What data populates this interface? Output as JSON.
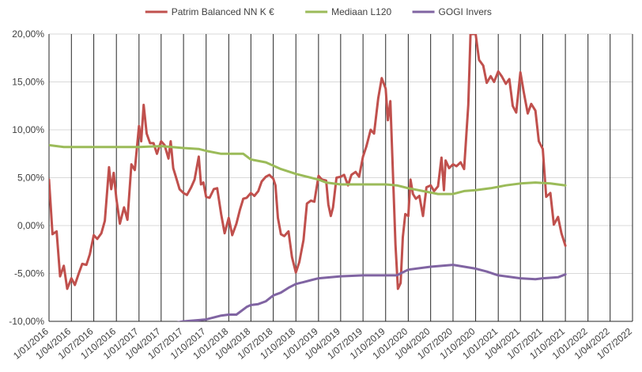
{
  "chart_data": {
    "type": "line",
    "y_ticks": [
      "20,00%",
      "15,00%",
      "10,00%",
      "5,00%",
      "0,00%",
      "-5,00%",
      "-10,00%"
    ],
    "y_tick_values": [
      20,
      15,
      10,
      5,
      0,
      -5,
      -10
    ],
    "ylim": [
      -10,
      20
    ],
    "x_ticks": [
      "1/01/2016",
      "1/04/2016",
      "1/07/2016",
      "1/10/2016",
      "1/01/2017",
      "1/04/2017",
      "1/07/2017",
      "1/10/2017",
      "1/01/2018",
      "1/04/2018",
      "1/07/2018",
      "1/10/2018",
      "1/01/2019",
      "1/04/2019",
      "1/07/2019",
      "1/10/2019",
      "1/01/2020",
      "1/04/2020",
      "1/07/2020",
      "1/10/2020",
      "1/01/2021",
      "1/04/2021",
      "1/07/2021",
      "1/10/2021",
      "1/01/2022",
      "1/04/2022",
      "1/07/2022"
    ],
    "xlim": [
      "2016-01-01",
      "2022-07-01"
    ],
    "grid": "vertical and horizontal",
    "legend_position": "top",
    "series": [
      {
        "name": "Patrim Balanced NN K €",
        "color": "#c0504d",
        "points": [
          [
            "2016-01-01",
            4.8
          ],
          [
            "2016-01-15",
            -0.9
          ],
          [
            "2016-02-01",
            -0.6
          ],
          [
            "2016-02-15",
            -5.3
          ],
          [
            "2016-03-01",
            -4.2
          ],
          [
            "2016-03-15",
            -6.6
          ],
          [
            "2016-04-01",
            -5.5
          ],
          [
            "2016-04-15",
            -6.2
          ],
          [
            "2016-05-01",
            -5.0
          ],
          [
            "2016-05-15",
            -4.0
          ],
          [
            "2016-06-01",
            -4.1
          ],
          [
            "2016-06-15",
            -3.0
          ],
          [
            "2016-07-01",
            -1.0
          ],
          [
            "2016-07-15",
            -1.4
          ],
          [
            "2016-08-01",
            -0.8
          ],
          [
            "2016-08-15",
            0.5
          ],
          [
            "2016-09-01",
            6.1
          ],
          [
            "2016-09-10",
            3.8
          ],
          [
            "2016-09-20",
            5.5
          ],
          [
            "2016-10-01",
            2.8
          ],
          [
            "2016-10-15",
            0.2
          ],
          [
            "2016-11-01",
            1.9
          ],
          [
            "2016-11-15",
            0.6
          ],
          [
            "2016-12-01",
            6.4
          ],
          [
            "2016-12-15",
            5.8
          ],
          [
            "2017-01-01",
            10.4
          ],
          [
            "2017-01-10",
            8.8
          ],
          [
            "2017-01-20",
            12.6
          ],
          [
            "2017-02-01",
            9.6
          ],
          [
            "2017-02-15",
            8.6
          ],
          [
            "2017-03-01",
            8.6
          ],
          [
            "2017-03-15",
            7.5
          ],
          [
            "2017-04-01",
            8.8
          ],
          [
            "2017-04-15",
            8.4
          ],
          [
            "2017-05-01",
            7.0
          ],
          [
            "2017-05-10",
            8.8
          ],
          [
            "2017-05-20",
            6.0
          ],
          [
            "2017-06-01",
            5.0
          ],
          [
            "2017-06-15",
            3.8
          ],
          [
            "2017-07-01",
            3.4
          ],
          [
            "2017-07-15",
            3.2
          ],
          [
            "2017-08-01",
            4.0
          ],
          [
            "2017-08-15",
            4.8
          ],
          [
            "2017-09-01",
            7.2
          ],
          [
            "2017-09-10",
            4.3
          ],
          [
            "2017-09-20",
            4.5
          ],
          [
            "2017-10-01",
            3.0
          ],
          [
            "2017-10-15",
            2.9
          ],
          [
            "2017-11-01",
            3.8
          ],
          [
            "2017-11-15",
            3.9
          ],
          [
            "2017-12-01",
            1.2
          ],
          [
            "2017-12-15",
            -0.8
          ],
          [
            "2018-01-01",
            0.8
          ],
          [
            "2018-01-15",
            -1.0
          ],
          [
            "2018-02-01",
            0.2
          ],
          [
            "2018-02-15",
            1.6
          ],
          [
            "2018-03-01",
            2.8
          ],
          [
            "2018-03-15",
            2.9
          ],
          [
            "2018-04-01",
            3.4
          ],
          [
            "2018-04-15",
            3.1
          ],
          [
            "2018-05-01",
            3.6
          ],
          [
            "2018-05-15",
            4.6
          ],
          [
            "2018-06-01",
            5.1
          ],
          [
            "2018-06-15",
            5.3
          ],
          [
            "2018-07-01",
            4.9
          ],
          [
            "2018-07-10",
            4.2
          ],
          [
            "2018-07-20",
            0.8
          ],
          [
            "2018-08-01",
            -0.9
          ],
          [
            "2018-08-15",
            -1.1
          ],
          [
            "2018-09-01",
            -0.6
          ],
          [
            "2018-09-15",
            -3.3
          ],
          [
            "2018-10-01",
            -4.9
          ],
          [
            "2018-10-15",
            -3.8
          ],
          [
            "2018-11-01",
            -1.5
          ],
          [
            "2018-11-15",
            2.3
          ],
          [
            "2018-12-01",
            2.6
          ],
          [
            "2018-12-15",
            2.5
          ],
          [
            "2019-01-01",
            5.2
          ],
          [
            "2019-01-15",
            4.8
          ],
          [
            "2019-02-01",
            4.7
          ],
          [
            "2019-02-10",
            2.2
          ],
          [
            "2019-02-20",
            1.0
          ],
          [
            "2019-03-01",
            1.9
          ],
          [
            "2019-03-15",
            5.0
          ],
          [
            "2019-04-01",
            5.1
          ],
          [
            "2019-04-15",
            5.3
          ],
          [
            "2019-05-01",
            4.2
          ],
          [
            "2019-05-15",
            5.3
          ],
          [
            "2019-06-01",
            5.6
          ],
          [
            "2019-06-15",
            5.1
          ],
          [
            "2019-07-01",
            7.2
          ],
          [
            "2019-07-15",
            8.3
          ],
          [
            "2019-08-01",
            10.0
          ],
          [
            "2019-08-15",
            9.6
          ],
          [
            "2019-09-01",
            13.3
          ],
          [
            "2019-09-15",
            15.4
          ],
          [
            "2019-10-01",
            14.3
          ],
          [
            "2019-10-10",
            11.0
          ],
          [
            "2019-10-20",
            13.0
          ],
          [
            "2019-11-01",
            4.5
          ],
          [
            "2019-11-10",
            -2.0
          ],
          [
            "2019-11-20",
            -6.6
          ],
          [
            "2019-12-01",
            -6.0
          ],
          [
            "2019-12-10",
            -1.2
          ],
          [
            "2019-12-20",
            1.2
          ],
          [
            "2020-01-01",
            1.0
          ],
          [
            "2020-01-10",
            4.8
          ],
          [
            "2020-01-20",
            3.3
          ],
          [
            "2020-02-01",
            2.8
          ],
          [
            "2020-02-15",
            3.1
          ],
          [
            "2020-03-01",
            1.0
          ],
          [
            "2020-03-15",
            4.0
          ],
          [
            "2020-04-01",
            4.2
          ],
          [
            "2020-04-15",
            3.6
          ],
          [
            "2020-05-01",
            4.1
          ],
          [
            "2020-05-15",
            7.1
          ],
          [
            "2020-05-25",
            3.7
          ],
          [
            "2020-06-01",
            6.8
          ],
          [
            "2020-06-15",
            6.0
          ],
          [
            "2020-07-01",
            6.4
          ],
          [
            "2020-07-15",
            6.2
          ],
          [
            "2020-08-01",
            6.6
          ],
          [
            "2020-08-15",
            5.9
          ],
          [
            "2020-09-01",
            12.6
          ],
          [
            "2020-09-10",
            20.0
          ],
          [
            "2020-10-01",
            20.0
          ],
          [
            "2020-10-15",
            17.3
          ],
          [
            "2020-11-01",
            16.7
          ],
          [
            "2020-11-15",
            14.9
          ],
          [
            "2020-12-01",
            15.6
          ],
          [
            "2020-12-15",
            15.0
          ],
          [
            "2021-01-01",
            16.1
          ],
          [
            "2021-01-15",
            15.6
          ],
          [
            "2021-02-01",
            14.8
          ],
          [
            "2021-02-15",
            15.3
          ],
          [
            "2021-03-01",
            12.5
          ],
          [
            "2021-03-15",
            11.8
          ],
          [
            "2021-04-01",
            16.0
          ],
          [
            "2021-04-15",
            13.9
          ],
          [
            "2021-05-01",
            11.7
          ],
          [
            "2021-05-15",
            12.7
          ],
          [
            "2021-06-01",
            12.0
          ],
          [
            "2021-06-15",
            8.8
          ],
          [
            "2021-07-01",
            8.0
          ],
          [
            "2021-07-15",
            3.0
          ],
          [
            "2021-08-01",
            3.4
          ],
          [
            "2021-08-15",
            0.1
          ],
          [
            "2021-09-01",
            0.9
          ],
          [
            "2021-09-15",
            -0.8
          ],
          [
            "2021-10-01",
            -2.1
          ]
        ]
      },
      {
        "name": "Mediaan L120",
        "color": "#9bbb59",
        "points": [
          [
            "2016-01-01",
            8.4
          ],
          [
            "2016-03-01",
            8.2
          ],
          [
            "2016-07-01",
            8.2
          ],
          [
            "2016-10-01",
            8.2
          ],
          [
            "2017-01-01",
            8.2
          ],
          [
            "2017-04-01",
            8.3
          ],
          [
            "2017-07-01",
            8.1
          ],
          [
            "2017-09-01",
            8.0
          ],
          [
            "2017-10-01",
            7.8
          ],
          [
            "2017-12-01",
            7.5
          ],
          [
            "2018-01-01",
            7.5
          ],
          [
            "2018-03-01",
            7.5
          ],
          [
            "2018-04-01",
            6.9
          ],
          [
            "2018-06-01",
            6.6
          ],
          [
            "2018-08-01",
            5.9
          ],
          [
            "2018-10-01",
            5.4
          ],
          [
            "2019-01-01",
            4.8
          ],
          [
            "2019-02-01",
            4.5
          ],
          [
            "2019-04-01",
            4.3
          ],
          [
            "2019-07-01",
            4.3
          ],
          [
            "2019-10-01",
            4.3
          ],
          [
            "2019-11-15",
            4.2
          ],
          [
            "2020-01-01",
            3.9
          ],
          [
            "2020-03-01",
            3.6
          ],
          [
            "2020-05-01",
            3.3
          ],
          [
            "2020-07-01",
            3.3
          ],
          [
            "2020-08-15",
            3.6
          ],
          [
            "2020-10-01",
            3.7
          ],
          [
            "2020-12-01",
            3.9
          ],
          [
            "2021-02-01",
            4.2
          ],
          [
            "2021-04-01",
            4.4
          ],
          [
            "2021-06-01",
            4.5
          ],
          [
            "2021-08-01",
            4.4
          ],
          [
            "2021-10-01",
            4.2
          ]
        ]
      },
      {
        "name": "GOGI Invers",
        "color": "#8064a2",
        "points": [
          [
            "2017-01-01",
            -10.8
          ],
          [
            "2017-04-01",
            -10.4
          ],
          [
            "2017-07-01",
            -10.0
          ],
          [
            "2017-10-01",
            -9.8
          ],
          [
            "2017-12-01",
            -9.4
          ],
          [
            "2018-01-01",
            -9.3
          ],
          [
            "2018-02-01",
            -9.3
          ],
          [
            "2018-03-15",
            -8.5
          ],
          [
            "2018-04-01",
            -8.3
          ],
          [
            "2018-05-01",
            -8.2
          ],
          [
            "2018-06-01",
            -7.9
          ],
          [
            "2018-07-01",
            -7.3
          ],
          [
            "2018-08-01",
            -7.0
          ],
          [
            "2018-09-01",
            -6.5
          ],
          [
            "2018-10-01",
            -6.1
          ],
          [
            "2018-11-01",
            -5.9
          ],
          [
            "2018-12-01",
            -5.7
          ],
          [
            "2019-01-01",
            -5.5
          ],
          [
            "2019-04-01",
            -5.3
          ],
          [
            "2019-07-01",
            -5.2
          ],
          [
            "2019-10-01",
            -5.2
          ],
          [
            "2019-11-15",
            -5.2
          ],
          [
            "2020-01-01",
            -4.6
          ],
          [
            "2020-04-01",
            -4.3
          ],
          [
            "2020-07-01",
            -4.1
          ],
          [
            "2020-10-01",
            -4.5
          ],
          [
            "2020-11-15",
            -4.8
          ],
          [
            "2021-01-01",
            -5.2
          ],
          [
            "2021-04-01",
            -5.5
          ],
          [
            "2021-06-01",
            -5.6
          ],
          [
            "2021-07-01",
            -5.5
          ],
          [
            "2021-09-01",
            -5.4
          ],
          [
            "2021-10-01",
            -5.1
          ]
        ]
      }
    ]
  }
}
